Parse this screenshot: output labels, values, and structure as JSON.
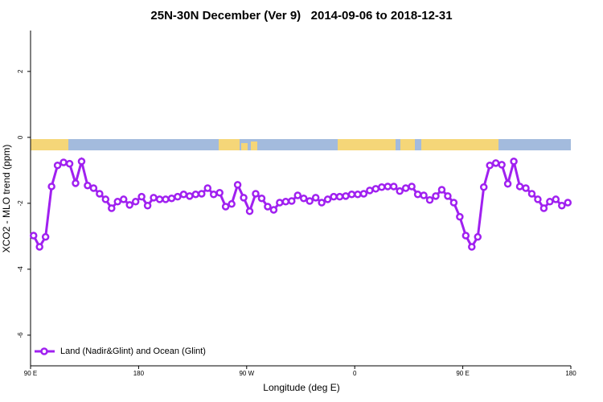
{
  "chart_data": {
    "type": "line",
    "title": "25N-30N December (Ver 9)   2014-09-06 to 2018-12-31",
    "x_label": "Longitude (deg E)",
    "y_label": "XCO2 - MLO trend (ppm)",
    "x": [
      92.5,
      97.5,
      102.5,
      107.5,
      112.5,
      117.5,
      122.5,
      127.5,
      132.5,
      137.5,
      142.5,
      147.5,
      152.5,
      157.5,
      162.5,
      167.5,
      172.5,
      177.5,
      182.5,
      187.5,
      192.5,
      197.5,
      202.5,
      207.5,
      212.5,
      217.5,
      222.5,
      227.5,
      232.5,
      237.5,
      242.5,
      247.5,
      252.5,
      257.5,
      262.5,
      267.5,
      272.5,
      277.5,
      282.5,
      287.5,
      292.5,
      297.5,
      302.5,
      307.5,
      312.5,
      317.5,
      322.5,
      327.5,
      332.5,
      337.5,
      342.5,
      347.5,
      352.5,
      357.5,
      362.5,
      367.5,
      372.5,
      377.5,
      382.5,
      387.5,
      392.5,
      397.5,
      402.5,
      407.5,
      412.5,
      417.5,
      422.5,
      427.5,
      432.5,
      437.5,
      442.5,
      447.5,
      452.5,
      457.5,
      462.5,
      467.5,
      472.5,
      477.5,
      482.5,
      487.5,
      492.5,
      497.5,
      502.5,
      507.5,
      512.5,
      517.5,
      522.5,
      527.5,
      532.5,
      537.5
    ],
    "series": [
      {
        "name": "Land (Nadir&Glint) and Ocean (Glint)",
        "color": "#a020f0",
        "values": [
          -2.98,
          -3.32,
          -3.02,
          -1.49,
          -0.85,
          -0.76,
          -0.8,
          -1.39,
          -0.73,
          -1.46,
          -1.54,
          -1.71,
          -1.88,
          -2.15,
          -1.95,
          -1.88,
          -2.05,
          -1.95,
          -1.8,
          -2.07,
          -1.83,
          -1.88,
          -1.88,
          -1.85,
          -1.8,
          -1.73,
          -1.78,
          -1.73,
          -1.71,
          -1.54,
          -1.73,
          -1.68,
          -2.1,
          -2.02,
          -1.44,
          -1.83,
          -2.24,
          -1.71,
          -1.85,
          -2.1,
          -2.2,
          -1.98,
          -1.95,
          -1.93,
          -1.76,
          -1.85,
          -1.93,
          -1.83,
          -1.98,
          -1.88,
          -1.8,
          -1.8,
          -1.78,
          -1.73,
          -1.73,
          -1.71,
          -1.61,
          -1.56,
          -1.51,
          -1.49,
          -1.49,
          -1.63,
          -1.54,
          -1.49,
          -1.73,
          -1.76,
          -1.9,
          -1.78,
          -1.59,
          -1.78,
          -1.98,
          -2.41,
          -2.98,
          -3.32,
          -3.02,
          -1.51,
          -0.85,
          -0.78,
          -0.83,
          -1.41,
          -0.73,
          -1.49,
          -1.54,
          -1.71,
          -1.88,
          -2.15,
          -1.95,
          -1.88,
          -2.07,
          -1.98
        ]
      }
    ],
    "xlim": [
      90,
      540
    ],
    "xticks": [
      {
        "value": 90,
        "label": "90 E"
      },
      180,
      {
        "value": 270,
        "label": "90 W"
      },
      {
        "value": 360,
        "label": "0"
      },
      {
        "value": 450,
        "label": "90 E"
      },
      {
        "value": 540,
        "label": "180"
      }
    ],
    "ylim": [
      -6.93,
      3.24
    ],
    "yticks": [
      2,
      0,
      -2,
      -4,
      -6
    ],
    "legend": "bottom-left"
  }
}
